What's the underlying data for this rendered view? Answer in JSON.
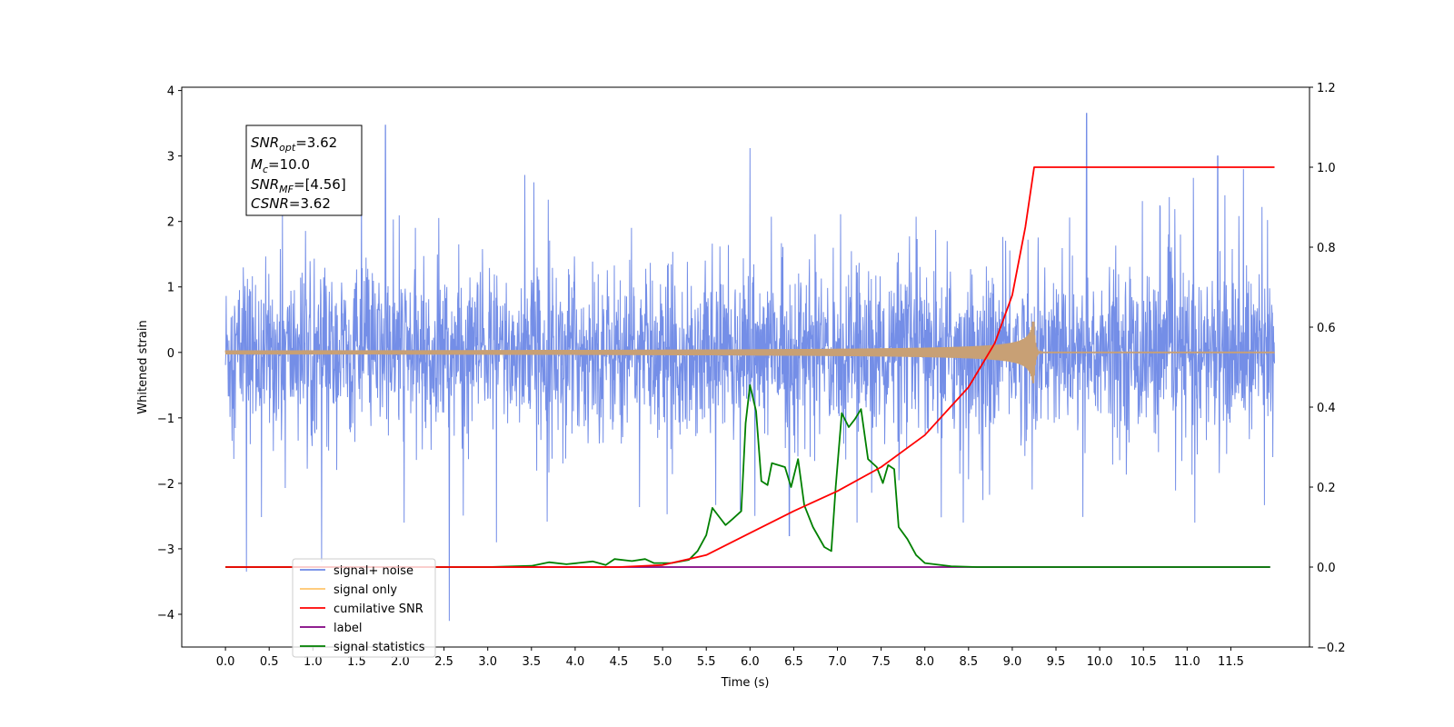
{
  "chart_data": {
    "type": "line",
    "xlabel": "Time (s)",
    "ylabel_left": "Whitened strain",
    "ylabel_right": "",
    "xlim": [
      -0.5,
      12.4
    ],
    "ylim_left": [
      -4.5,
      4.05
    ],
    "ylim_right": [
      -0.2,
      1.2
    ],
    "xticks": [
      "0.0",
      "0.5",
      "1.0",
      "1.5",
      "2.0",
      "2.5",
      "3.0",
      "3.5",
      "4.0",
      "4.5",
      "5.0",
      "5.5",
      "6.0",
      "6.5",
      "7.0",
      "7.5",
      "8.0",
      "8.5",
      "9.0",
      "9.5",
      "10.0",
      "10.5",
      "11.0",
      "11.5"
    ],
    "yticks_left": [
      "4",
      "3",
      "2",
      "1",
      "0",
      "−1",
      "−2",
      "−3",
      "−4"
    ],
    "yticks_right": [
      "1.2",
      "1.0",
      "0.8",
      "0.6",
      "0.4",
      "0.2",
      "0.0",
      "−0.2"
    ],
    "annotation": {
      "snr_opt": {
        "sym": "SNR",
        "sub": "opt",
        "val": "=3.62"
      },
      "mc": {
        "sym": "M",
        "sub": "c",
        "val": "=10.0"
      },
      "snr_mf": {
        "sym": "SNR",
        "sub": "MF",
        "val": "=[4.56]"
      },
      "csnr": {
        "sym": "CSNR",
        "val": "=3.62"
      }
    },
    "legend": {
      "placement": "lower-left",
      "items": [
        {
          "label": "signal+ noise",
          "color": "#6d88e6"
        },
        {
          "label": "signal only",
          "color": "#ffc56b"
        },
        {
          "label": "cumilative SNR",
          "color": "#ff0000"
        },
        {
          "label": "label",
          "color": "#800080"
        },
        {
          "label": "signal statistics",
          "color": "#008000"
        }
      ]
    },
    "series": [
      {
        "name": "signal+ noise",
        "axis": "left",
        "color": "#6d88e6",
        "x_range": [
          0.0,
          12.0
        ],
        "description_values": {
          "typical_min": -1.6,
          "typical_max": 1.6
        },
        "peaks": [
          {
            "x": 0.24,
            "y": -3.35
          },
          {
            "x": 1.83,
            "y": 3.47
          },
          {
            "x": 2.56,
            "y": -4.1
          },
          {
            "x": 6.0,
            "y": 3.12
          },
          {
            "x": 9.85,
            "y": 3.65
          },
          {
            "x": 11.35,
            "y": 3.0
          },
          {
            "x": 1.1,
            "y": -3.2
          },
          {
            "x": 3.1,
            "y": -2.9
          },
          {
            "x": 6.45,
            "y": -2.8
          }
        ]
      },
      {
        "name": "signal only",
        "axis": "left",
        "color": "#c8a075",
        "x_range": [
          0.0,
          12.0
        ],
        "chirp_peak_time": 9.25,
        "chirp_peak_amplitude": 0.47
      },
      {
        "name": "cumilative SNR",
        "axis": "right",
        "color": "#ff0000",
        "points": [
          [
            0.0,
            0.0
          ],
          [
            4.5,
            0.0
          ],
          [
            5.0,
            0.005
          ],
          [
            5.5,
            0.03
          ],
          [
            6.0,
            0.085
          ],
          [
            6.5,
            0.14
          ],
          [
            7.0,
            0.19
          ],
          [
            7.5,
            0.25
          ],
          [
            8.0,
            0.33
          ],
          [
            8.5,
            0.45
          ],
          [
            8.8,
            0.56
          ],
          [
            9.0,
            0.68
          ],
          [
            9.15,
            0.85
          ],
          [
            9.25,
            1.0
          ],
          [
            12.0,
            1.0
          ]
        ]
      },
      {
        "name": "label",
        "axis": "right",
        "color": "#800080",
        "points": [
          [
            0.0,
            0.0
          ],
          [
            11.95,
            0.0
          ]
        ]
      },
      {
        "name": "signal statistics",
        "axis": "right",
        "color": "#008000",
        "points": [
          [
            0.0,
            0.0
          ],
          [
            3.0,
            0.0
          ],
          [
            3.5,
            0.003
          ],
          [
            3.7,
            0.012
          ],
          [
            3.9,
            0.007
          ],
          [
            4.2,
            0.014
          ],
          [
            4.35,
            0.005
          ],
          [
            4.45,
            0.02
          ],
          [
            4.65,
            0.015
          ],
          [
            4.8,
            0.02
          ],
          [
            4.9,
            0.01
          ],
          [
            5.1,
            0.01
          ],
          [
            5.3,
            0.018
          ],
          [
            5.4,
            0.04
          ],
          [
            5.5,
            0.08
          ],
          [
            5.57,
            0.148
          ],
          [
            5.65,
            0.125
          ],
          [
            5.72,
            0.105
          ],
          [
            5.8,
            0.12
          ],
          [
            5.9,
            0.14
          ],
          [
            5.95,
            0.36
          ],
          [
            6.0,
            0.455
          ],
          [
            6.07,
            0.39
          ],
          [
            6.13,
            0.215
          ],
          [
            6.2,
            0.205
          ],
          [
            6.25,
            0.26
          ],
          [
            6.4,
            0.25
          ],
          [
            6.47,
            0.2
          ],
          [
            6.55,
            0.27
          ],
          [
            6.62,
            0.155
          ],
          [
            6.72,
            0.1
          ],
          [
            6.85,
            0.05
          ],
          [
            6.93,
            0.04
          ],
          [
            6.98,
            0.2
          ],
          [
            7.05,
            0.385
          ],
          [
            7.13,
            0.35
          ],
          [
            7.2,
            0.37
          ],
          [
            7.27,
            0.395
          ],
          [
            7.35,
            0.27
          ],
          [
            7.45,
            0.25
          ],
          [
            7.52,
            0.21
          ],
          [
            7.58,
            0.255
          ],
          [
            7.65,
            0.245
          ],
          [
            7.7,
            0.1
          ],
          [
            7.8,
            0.07
          ],
          [
            7.9,
            0.03
          ],
          [
            8.0,
            0.01
          ],
          [
            8.3,
            0.002
          ],
          [
            8.6,
            0.0
          ],
          [
            11.95,
            0.0
          ]
        ]
      }
    ]
  }
}
